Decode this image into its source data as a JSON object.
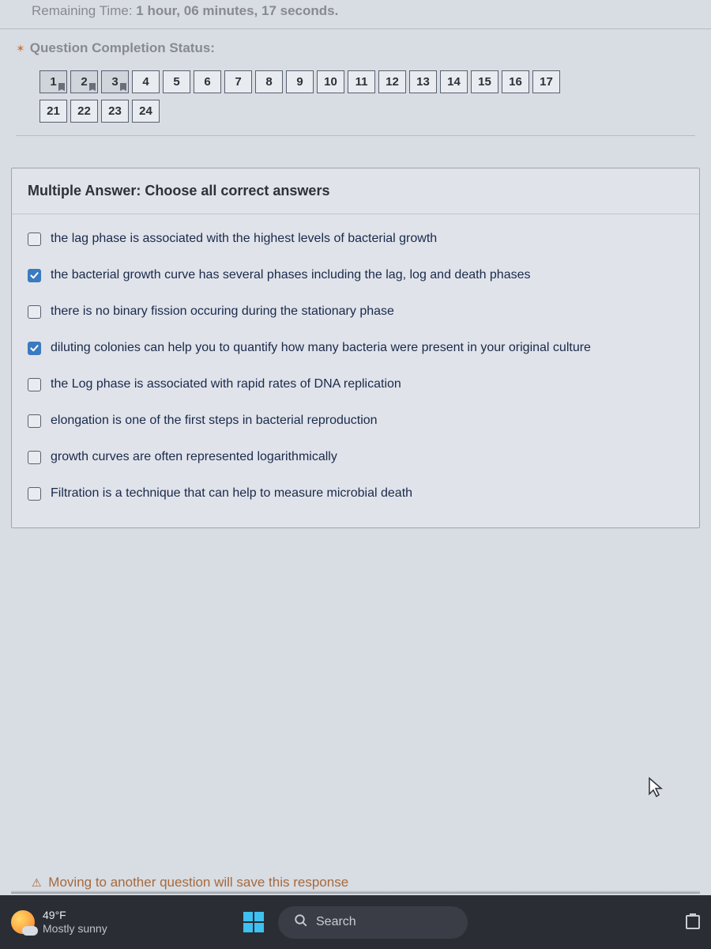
{
  "timer": {
    "label": "Remaining Time:",
    "value": "1 hour, 06 minutes, 17 seconds."
  },
  "status": {
    "title": "Question Completion Status:",
    "numbers": [
      {
        "n": "1",
        "marked": true,
        "current": true
      },
      {
        "n": "2",
        "marked": true,
        "current": true
      },
      {
        "n": "3",
        "marked": true,
        "current": true
      },
      {
        "n": "4",
        "marked": false,
        "current": false
      },
      {
        "n": "5",
        "marked": false,
        "current": false
      },
      {
        "n": "6",
        "marked": false,
        "current": false
      },
      {
        "n": "7",
        "marked": false,
        "current": false
      },
      {
        "n": "8",
        "marked": false,
        "current": false
      },
      {
        "n": "9",
        "marked": false,
        "current": false
      },
      {
        "n": "10",
        "marked": false,
        "current": false
      },
      {
        "n": "11",
        "marked": false,
        "current": false
      },
      {
        "n": "12",
        "marked": false,
        "current": false
      },
      {
        "n": "13",
        "marked": false,
        "current": false
      },
      {
        "n": "14",
        "marked": false,
        "current": false
      },
      {
        "n": "15",
        "marked": false,
        "current": false
      },
      {
        "n": "16",
        "marked": false,
        "current": false
      },
      {
        "n": "17",
        "marked": false,
        "current": false
      },
      {
        "n": "21",
        "marked": false,
        "current": false
      },
      {
        "n": "22",
        "marked": false,
        "current": false
      },
      {
        "n": "23",
        "marked": false,
        "current": false
      },
      {
        "n": "24",
        "marked": false,
        "current": false
      }
    ]
  },
  "question": {
    "type_label": "Multiple Answer:",
    "instruction": "Choose all correct answers",
    "answers": [
      {
        "checked": false,
        "text": "the lag phase is associated with the highest levels of bacterial growth"
      },
      {
        "checked": true,
        "text": "the bacterial growth curve has several phases including the lag, log and death phases"
      },
      {
        "checked": false,
        "text": "there is no binary fission occuring during the stationary phase"
      },
      {
        "checked": true,
        "text": "diluting colonies can help you to quantify how many bacteria were present in your original culture"
      },
      {
        "checked": false,
        "text": "the Log phase is associated with rapid rates of DNA replication"
      },
      {
        "checked": false,
        "text": "elongation is one of the first steps in bacterial reproduction"
      },
      {
        "checked": false,
        "text": "growth curves are often represented logarithmically"
      },
      {
        "checked": false,
        "text": "Filtration is a technique that can help to measure microbial death"
      }
    ]
  },
  "moving_msg": "Moving to another question will save this response",
  "taskbar": {
    "weather_temp": "49°F",
    "weather_desc": "Mostly sunny",
    "search_placeholder": "Search"
  },
  "colors": {
    "page_bg": "#d8dce3",
    "accent": "#3a7abf",
    "muted_text": "#888a92",
    "link_text": "#1a2a4a",
    "warn": "#c97a3d",
    "taskbar_bg": "#2a2d34"
  }
}
